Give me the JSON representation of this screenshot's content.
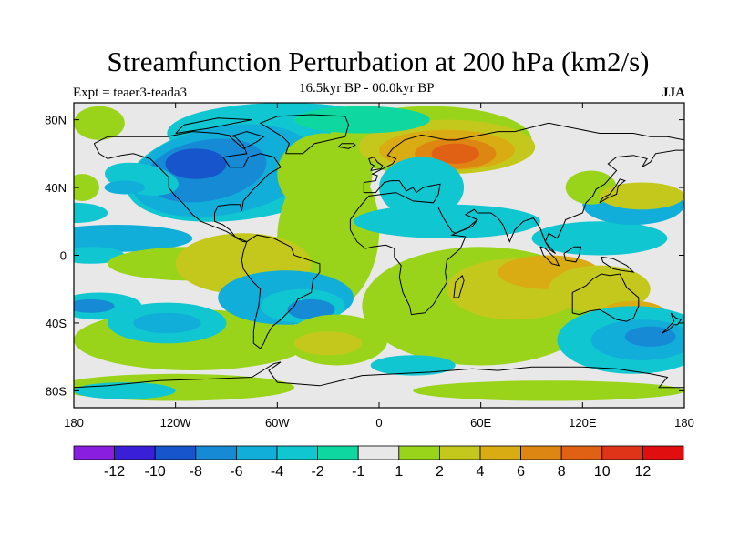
{
  "chart_data": {
    "type": "heatmap",
    "title": "Streamfunction Perturbation at 200 hPa (km2/s)",
    "subtitle": "16.5kyr BP - 00.0kyr BP",
    "left_label": "Expt = teaer3-teada3",
    "right_label": "JJA",
    "x_axis": {
      "range": [
        -180,
        180
      ],
      "ticks": [
        -180,
        -120,
        -60,
        0,
        60,
        120,
        180
      ],
      "tick_labels": [
        "180",
        "120W",
        "60W",
        "0",
        "60E",
        "120E",
        "180"
      ]
    },
    "y_axis": {
      "range": [
        -90,
        90
      ],
      "ticks": [
        80,
        40,
        0,
        -40,
        -80
      ],
      "tick_labels": [
        "80N",
        "40N",
        "0",
        "40S",
        "80S"
      ]
    },
    "colorbar": {
      "levels": [
        -12,
        -10,
        -8,
        -6,
        -4,
        -2,
        -1,
        1,
        2,
        4,
        6,
        8,
        10,
        12
      ],
      "labels": [
        "-12",
        "-10",
        "-8",
        "-6",
        "-4",
        "-2",
        "-1",
        "1",
        "2",
        "4",
        "6",
        "8",
        "10",
        "12"
      ],
      "colors": [
        "#8a1ee0",
        "#3a1fd8",
        "#1655cc",
        "#178ad6",
        "#11aed9",
        "#10c6d0",
        "#0fd7a0",
        "#e8e8e8",
        "#9ad41a",
        "#c4c81c",
        "#d8ac12",
        "#de8612",
        "#e06014",
        "#e03418",
        "#e00e0e"
      ]
    },
    "features": [
      {
        "name": "North America low",
        "lon": -105,
        "lat": 50,
        "value": -8
      },
      {
        "name": "North Atlantic high",
        "lon": -30,
        "lat": 43,
        "value": 10
      },
      {
        "name": "Eurasian high",
        "lon": 50,
        "lat": 60,
        "value": 10
      },
      {
        "name": "Southern Pacific low",
        "lon": 160,
        "lat": -45,
        "value": -6
      },
      {
        "name": "Southern Indian high",
        "lon": 80,
        "lat": -25,
        "value": 4
      },
      {
        "name": "South Atlantic low",
        "lon": 0,
        "lat": -25,
        "value": -6
      }
    ]
  }
}
